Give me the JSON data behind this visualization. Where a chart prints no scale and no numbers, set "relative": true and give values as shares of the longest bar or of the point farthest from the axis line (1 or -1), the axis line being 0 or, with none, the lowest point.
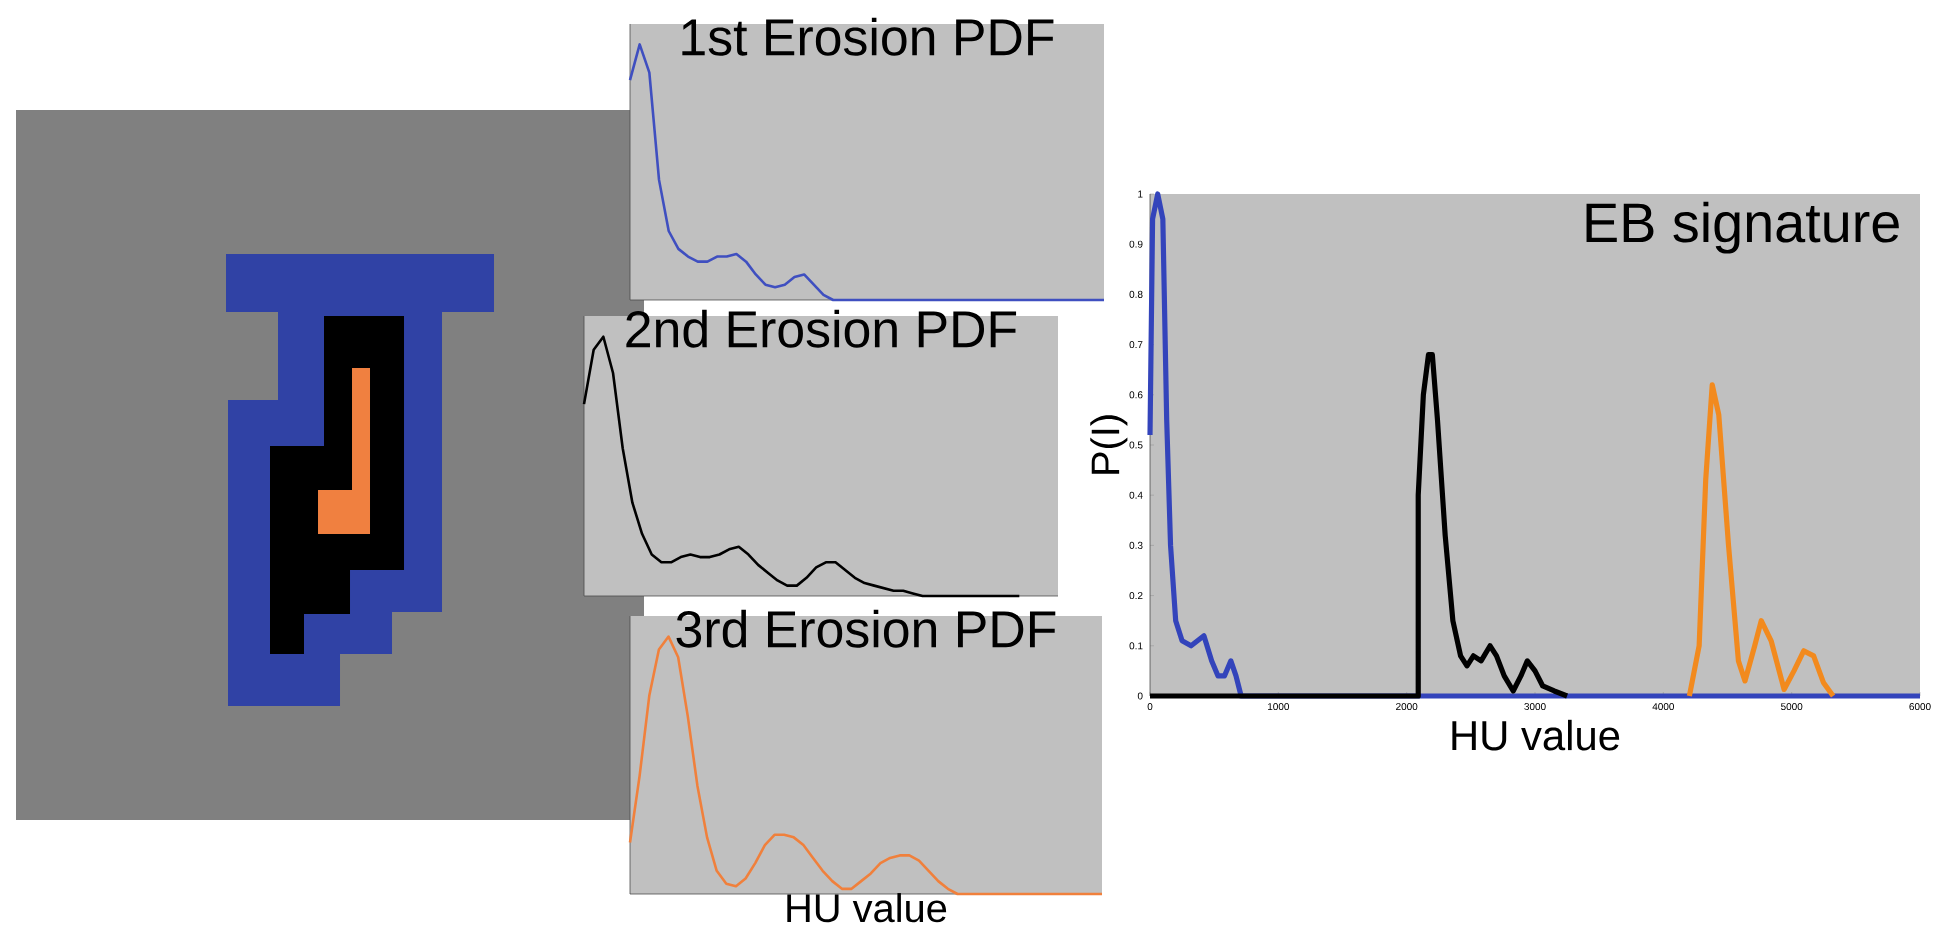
{
  "chart_data": [
    {
      "type": "line",
      "title": "1st Erosion PDF",
      "relative": true,
      "color": "#3f4fc0",
      "categories": [
        null,
        null,
        null,
        null,
        null,
        null,
        null,
        null,
        null,
        null,
        null,
        null,
        null,
        null,
        null,
        null,
        null,
        null,
        null,
        null,
        null,
        null,
        null,
        null,
        null,
        null,
        null,
        null,
        null,
        null,
        null,
        null,
        null,
        null,
        null,
        null,
        null,
        null,
        null,
        null,
        null,
        null,
        null,
        null,
        null,
        null,
        null,
        null,
        null,
        null
      ],
      "values": [
        0.86,
        1.0,
        0.89,
        0.47,
        0.27,
        0.2,
        0.17,
        0.15,
        0.15,
        0.17,
        0.17,
        0.18,
        0.15,
        0.1,
        0.06,
        0.05,
        0.06,
        0.09,
        0.1,
        0.06,
        0.02,
        0,
        0,
        0,
        0,
        0,
        0,
        0,
        0,
        0,
        0,
        0,
        0,
        0,
        0,
        0,
        0,
        0,
        0,
        0,
        0,
        0,
        0,
        0,
        0,
        0,
        0,
        0,
        0,
        0
      ]
    },
    {
      "type": "line",
      "title": "2nd Erosion PDF",
      "relative": true,
      "color": "#000000",
      "categories": [
        null,
        null,
        null,
        null,
        null,
        null,
        null,
        null,
        null,
        null,
        null,
        null,
        null,
        null,
        null,
        null,
        null,
        null,
        null,
        null,
        null,
        null,
        null,
        null,
        null,
        null,
        null,
        null,
        null,
        null,
        null,
        null,
        null,
        null,
        null,
        null,
        null,
        null,
        null,
        null,
        null,
        null,
        null,
        null,
        null,
        null,
        null,
        null,
        null,
        null
      ],
      "values": [
        0.74,
        0.95,
        1.0,
        0.86,
        0.57,
        0.36,
        0.24,
        0.16,
        0.13,
        0.13,
        0.15,
        0.16,
        0.15,
        0.15,
        0.16,
        0.18,
        0.19,
        0.16,
        0.12,
        0.09,
        0.06,
        0.04,
        0.04,
        0.07,
        0.11,
        0.13,
        0.13,
        0.1,
        0.07,
        0.05,
        0.04,
        0.03,
        0.02,
        0.02,
        0.01,
        0,
        0,
        0,
        0,
        0,
        0,
        0,
        0,
        0,
        0,
        0,
        null,
        null,
        null,
        null
      ]
    },
    {
      "type": "line",
      "title": "3rd Erosion PDF",
      "xlabel": "HU value",
      "relative": true,
      "color": "#f0803c",
      "categories": [
        null,
        null,
        null,
        null,
        null,
        null,
        null,
        null,
        null,
        null,
        null,
        null,
        null,
        null,
        null,
        null,
        null,
        null,
        null,
        null,
        null,
        null,
        null,
        null,
        null,
        null,
        null,
        null,
        null,
        null,
        null,
        null,
        null,
        null,
        null,
        null,
        null,
        null,
        null,
        null,
        null,
        null,
        null,
        null,
        null,
        null,
        null,
        null,
        null,
        null
      ],
      "values": [
        0.2,
        0.46,
        0.77,
        0.95,
        1.0,
        0.92,
        0.69,
        0.42,
        0.22,
        0.09,
        0.04,
        0.03,
        0.06,
        0.12,
        0.19,
        0.23,
        0.23,
        0.22,
        0.19,
        0.14,
        0.09,
        0.05,
        0.02,
        0.02,
        0.05,
        0.08,
        0.12,
        0.14,
        0.15,
        0.15,
        0.13,
        0.09,
        0.05,
        0.02,
        0,
        0,
        0,
        0,
        0,
        0,
        0,
        0,
        0,
        0,
        0,
        0,
        0,
        0,
        0,
        0
      ]
    },
    {
      "type": "line",
      "title": "EB signature",
      "xlabel": "HU value",
      "ylabel": "P(I)",
      "xlim": [
        0,
        6000
      ],
      "ylim": [
        0,
        1
      ],
      "xticks": [
        0,
        1000,
        2000,
        3000,
        4000,
        5000,
        6000
      ],
      "yticks": [
        0,
        0.1,
        0.2,
        0.3,
        0.4,
        0.5,
        0.6,
        0.7,
        0.8,
        0.9,
        1
      ],
      "series": [
        {
          "color": "#3344bb",
          "x": [
            0,
            20,
            60,
            100,
            130,
            160,
            200,
            250,
            320,
            420,
            480,
            530,
            580,
            630,
            670,
            710,
            6000
          ],
          "values": [
            0.52,
            0.95,
            1.0,
            0.95,
            0.55,
            0.3,
            0.15,
            0.11,
            0.1,
            0.12,
            0.07,
            0.04,
            0.04,
            0.07,
            0.04,
            0,
            0
          ]
        },
        {
          "color": "#000000",
          "x": [
            0,
            2090,
            2090,
            2130,
            2170,
            2200,
            2240,
            2300,
            2360,
            2420,
            2470,
            2520,
            2580,
            2650,
            2700,
            2760,
            2830,
            2890,
            2940,
            3000,
            3060,
            3150,
            3250
          ],
          "values": [
            0,
            0,
            0.4,
            0.6,
            0.68,
            0.68,
            0.55,
            0.32,
            0.15,
            0.08,
            0.06,
            0.08,
            0.07,
            0.1,
            0.08,
            0.04,
            0.01,
            0.04,
            0.07,
            0.05,
            0.02,
            0.01,
            0
          ]
        },
        {
          "color": "#f28a1e",
          "x": [
            4203,
            4279,
            4330,
            4381,
            4432,
            4508,
            4585,
            4636,
            4712,
            4763,
            4840,
            4941,
            5018,
            5094,
            5171,
            5247,
            5323
          ],
          "values": [
            0,
            0.1,
            0.43,
            0.62,
            0.56,
            0.3,
            0.07,
            0.03,
            0.1,
            0.15,
            0.11,
            0.013,
            0.05,
            0.09,
            0.08,
            0.027,
            0
          ]
        }
      ]
    }
  ]
}
